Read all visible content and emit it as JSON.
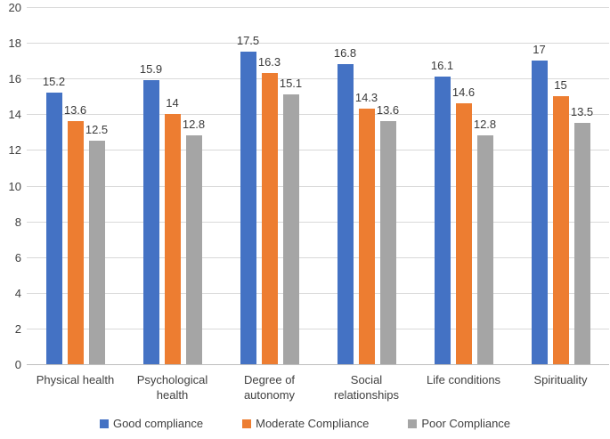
{
  "chart_data": {
    "type": "bar",
    "title": "",
    "xlabel": "",
    "ylabel": "",
    "categories": [
      "Physical health",
      "Psychological health",
      "Degree of autonomy",
      "Social relationships",
      "Life conditions",
      "Spirituality"
    ],
    "series": [
      {
        "name": "Good compliance",
        "color": "#4472C4",
        "values": [
          15.2,
          15.9,
          17.5,
          16.8,
          16.1,
          17
        ]
      },
      {
        "name": "Moderate Compliance",
        "color": "#ED7D31",
        "values": [
          13.6,
          14,
          16.3,
          14.3,
          14.6,
          15
        ]
      },
      {
        "name": "Poor Compliance",
        "color": "#A5A5A5",
        "values": [
          12.5,
          12.8,
          15.1,
          13.6,
          12.8,
          13.5
        ]
      }
    ],
    "data_labels": [
      [
        "15.2",
        "15.9",
        "17.5",
        "16.8",
        "16.1",
        "17"
      ],
      [
        "13.6",
        "14",
        "16.3",
        "14.3",
        "14.6",
        "15"
      ],
      [
        "12.5",
        "12.8",
        "15.1",
        "13.6",
        "12.8",
        "13.5"
      ]
    ],
    "ylim": [
      0,
      20
    ],
    "yticks": [
      0,
      2,
      4,
      6,
      8,
      10,
      12,
      14,
      16,
      18,
      20
    ],
    "grid": true,
    "legend_position": "bottom",
    "colors": {
      "gridline": "#d9d9d9",
      "axis_line": "#bfbfbf",
      "text": "#404040",
      "background": "#ffffff"
    }
  }
}
